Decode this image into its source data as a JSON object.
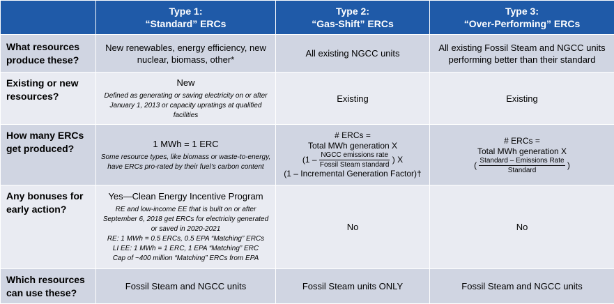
{
  "headers": {
    "type1_line1": "Type 1:",
    "type1_line2": "“Standard” ERCs",
    "type2_line1": "Type 2:",
    "type2_line2": "“Gas-Shift” ERCs",
    "type3_line1": "Type 3:",
    "type3_line2": "“Over-Performing” ERCs"
  },
  "rows": {
    "resources": {
      "label": "What resources produce these?",
      "type1": "New renewables, energy efficiency, new nuclear, biomass, other*",
      "type2": "All existing NGCC units",
      "type3": "All existing Fossil Steam and NGCC units performing better than their standard"
    },
    "existing": {
      "label": "Existing or new resources?",
      "type1_main": "New",
      "type1_note": "Defined as generating or saving electricity on or after January 1, 2013 or capacity upratings at qualified facilities",
      "type2": "Existing",
      "type3": "Existing"
    },
    "howmany": {
      "label": "How many ERCs get produced?",
      "type1_main": "1 MWh = 1 ERC",
      "type1_note": "Some resource types, like biomass or waste-to-energy, have ERCs pro-rated by their fuel’s carbon content",
      "type2_line1": "# ERCs =",
      "type2_line2": "Total MWh generation X",
      "type2_open": "(1 –",
      "type2_num": "NGCC emissions rate",
      "type2_den": "Fossil Steam standard",
      "type2_close": ") X",
      "type2_line4": "(1 – Incremental Generation Factor)†",
      "type3_line1": "# ERCs =",
      "type3_line2": "Total MWh generation X",
      "type3_open": "(",
      "type3_num": "Standard – Emissions Rate",
      "type3_den": "Standard",
      "type3_close": ")"
    },
    "bonuses": {
      "label": "Any bonuses for early action?",
      "type1_main": "Yes—Clean Energy Incentive Program",
      "type1_note1": "RE and low-income EE that is built on or after September 6, 2018 get ERCs for electricity generated or saved in 2020-2021",
      "type1_note2": "RE: 1 MWh = 0.5 ERCs, 0.5 EPA “Matching” ERCs",
      "type1_note3": "LI EE: 1 MWh = 1 ERC, 1 EPA “Matching” ERC",
      "type1_note4": "Cap of ~400 million “Matching” ERCs from EPA",
      "type2": "No",
      "type3": "No"
    },
    "use": {
      "label": "Which resources can use these?",
      "type1": "Fossil Steam and NGCC units",
      "type2": "Fossil Steam units ONLY",
      "type3": "Fossil Steam and NGCC units"
    }
  }
}
